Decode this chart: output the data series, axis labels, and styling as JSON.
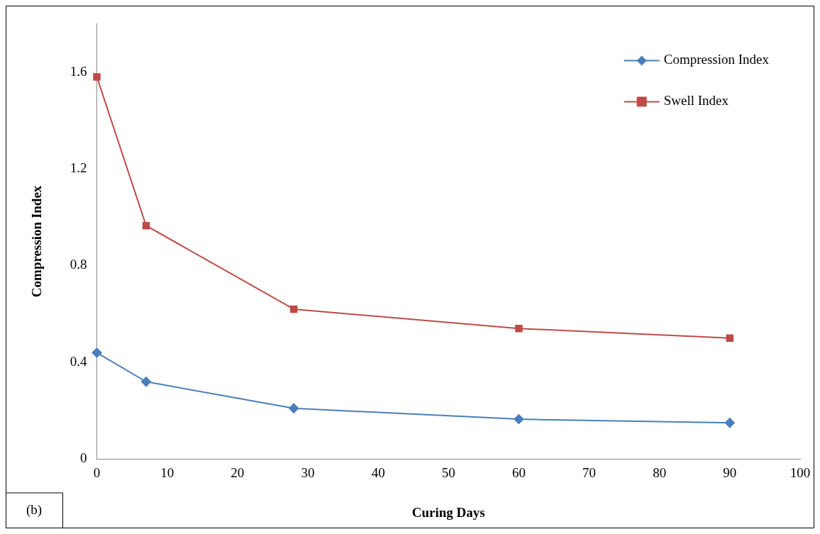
{
  "chart_data": {
    "type": "line",
    "xlabel": "Curing Days",
    "ylabel": "Compression Index",
    "x": [
      0,
      7,
      28,
      60,
      90
    ],
    "series": [
      {
        "name": "Compression Index",
        "color": "#4a7ebb",
        "marker": "diamond",
        "values": [
          0.44,
          0.32,
          0.21,
          0.165,
          0.15
        ]
      },
      {
        "name": "Swell Index",
        "color": "#be4b48",
        "marker": "square",
        "values": [
          1.58,
          0.965,
          0.62,
          0.54,
          0.5
        ]
      }
    ],
    "xlim": [
      0,
      100
    ],
    "xticks": [
      0,
      10,
      20,
      30,
      40,
      50,
      60,
      70,
      80,
      90,
      100
    ],
    "ylim": [
      0,
      1.8
    ],
    "yticks": [
      0,
      0.4,
      0.8,
      1.2,
      1.6
    ],
    "grid": false,
    "legend": "top right",
    "annotations": [
      "(b)"
    ]
  }
}
